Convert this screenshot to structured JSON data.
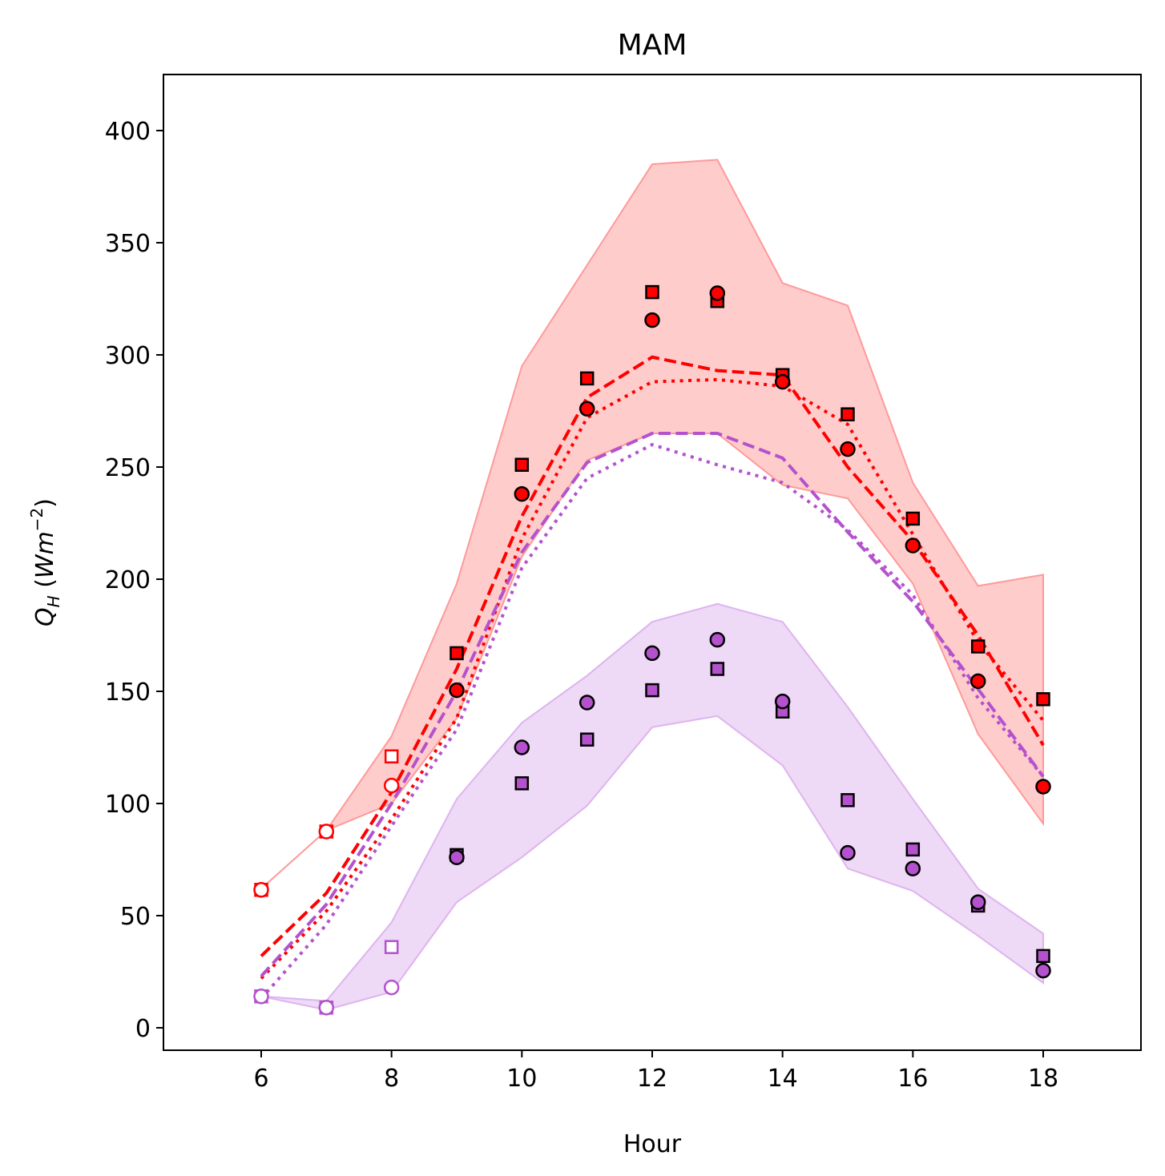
{
  "chart_data": {
    "type": "line",
    "title": "MAM",
    "xlabel": "Hour",
    "ylabel_main": "Q",
    "ylabel_sub": "H",
    "ylabel_open": " (",
    "ylabel_unit": "Wm",
    "ylabel_exp": "−2",
    "ylabel_close": ")",
    "xlim": [
      4.5,
      19.5
    ],
    "ylim": [
      -10,
      425
    ],
    "xticks": [
      6,
      8,
      10,
      12,
      14,
      16,
      18
    ],
    "yticks": [
      0,
      50,
      100,
      150,
      200,
      250,
      300,
      350,
      400
    ],
    "grid": false,
    "x": [
      6,
      7,
      8,
      9,
      10,
      11,
      12,
      13,
      14,
      15,
      16,
      17,
      18
    ],
    "colors": {
      "red": "#ff0000",
      "purple": "#b452cd",
      "red_band": "#ff9999",
      "purple_band": "#ddb4ee"
    },
    "bands": [
      {
        "color": "red",
        "upper": [
          62,
          88,
          130,
          198,
          295,
          340,
          385,
          387,
          332,
          322,
          243,
          197,
          202
        ],
        "lower": [
          62,
          88,
          100,
          138,
          210,
          253,
          265,
          265,
          242,
          236,
          198,
          131,
          91
        ]
      },
      {
        "color": "purple",
        "upper": [
          14,
          12,
          47,
          102,
          136,
          157,
          181,
          189,
          181,
          143,
          102,
          62,
          42
        ],
        "lower": [
          14,
          8,
          16,
          56,
          76,
          99,
          134,
          139,
          117,
          71,
          61,
          41,
          20
        ]
      }
    ],
    "lines": [
      {
        "color": "red",
        "style": "dashed",
        "values": [
          32,
          60,
          105,
          160,
          228,
          281,
          299,
          293,
          291,
          250,
          217,
          175,
          126
        ]
      },
      {
        "color": "red",
        "style": "dotted",
        "values": [
          22,
          52,
          93,
          138,
          218,
          272,
          288,
          289,
          286,
          269,
          220,
          172,
          137
        ]
      },
      {
        "color": "purple",
        "style": "dashed",
        "values": [
          23,
          55,
          100,
          150,
          212,
          252,
          265,
          265,
          254,
          221,
          190,
          151,
          112
        ]
      },
      {
        "color": "purple",
        "style": "dotted",
        "values": [
          13,
          46,
          90,
          133,
          205,
          245,
          260,
          251,
          243,
          222,
          193,
          147,
          112
        ]
      }
    ],
    "markers": [
      {
        "color": "red",
        "shape": "square",
        "values": [
          61.5,
          87.5,
          121,
          167,
          251,
          289.5,
          328,
          324,
          291,
          273.5,
          227,
          170,
          146.5
        ],
        "hollow_count": 3
      },
      {
        "color": "red",
        "shape": "circle",
        "values": [
          61.5,
          87.5,
          108,
          150.5,
          238,
          276,
          315.5,
          327.5,
          288,
          258,
          215,
          154.5,
          107.5
        ],
        "hollow_count": 3
      },
      {
        "color": "purple",
        "shape": "square",
        "values": [
          14,
          9,
          36,
          77,
          109,
          128.5,
          150.5,
          160,
          141,
          101.5,
          79.5,
          54.5,
          32
        ],
        "hollow_count": 3
      },
      {
        "color": "purple",
        "shape": "circle",
        "values": [
          14,
          9,
          18,
          76,
          125,
          145,
          167,
          173,
          145.5,
          78,
          71,
          56,
          25.5
        ],
        "hollow_count": 3
      }
    ]
  }
}
